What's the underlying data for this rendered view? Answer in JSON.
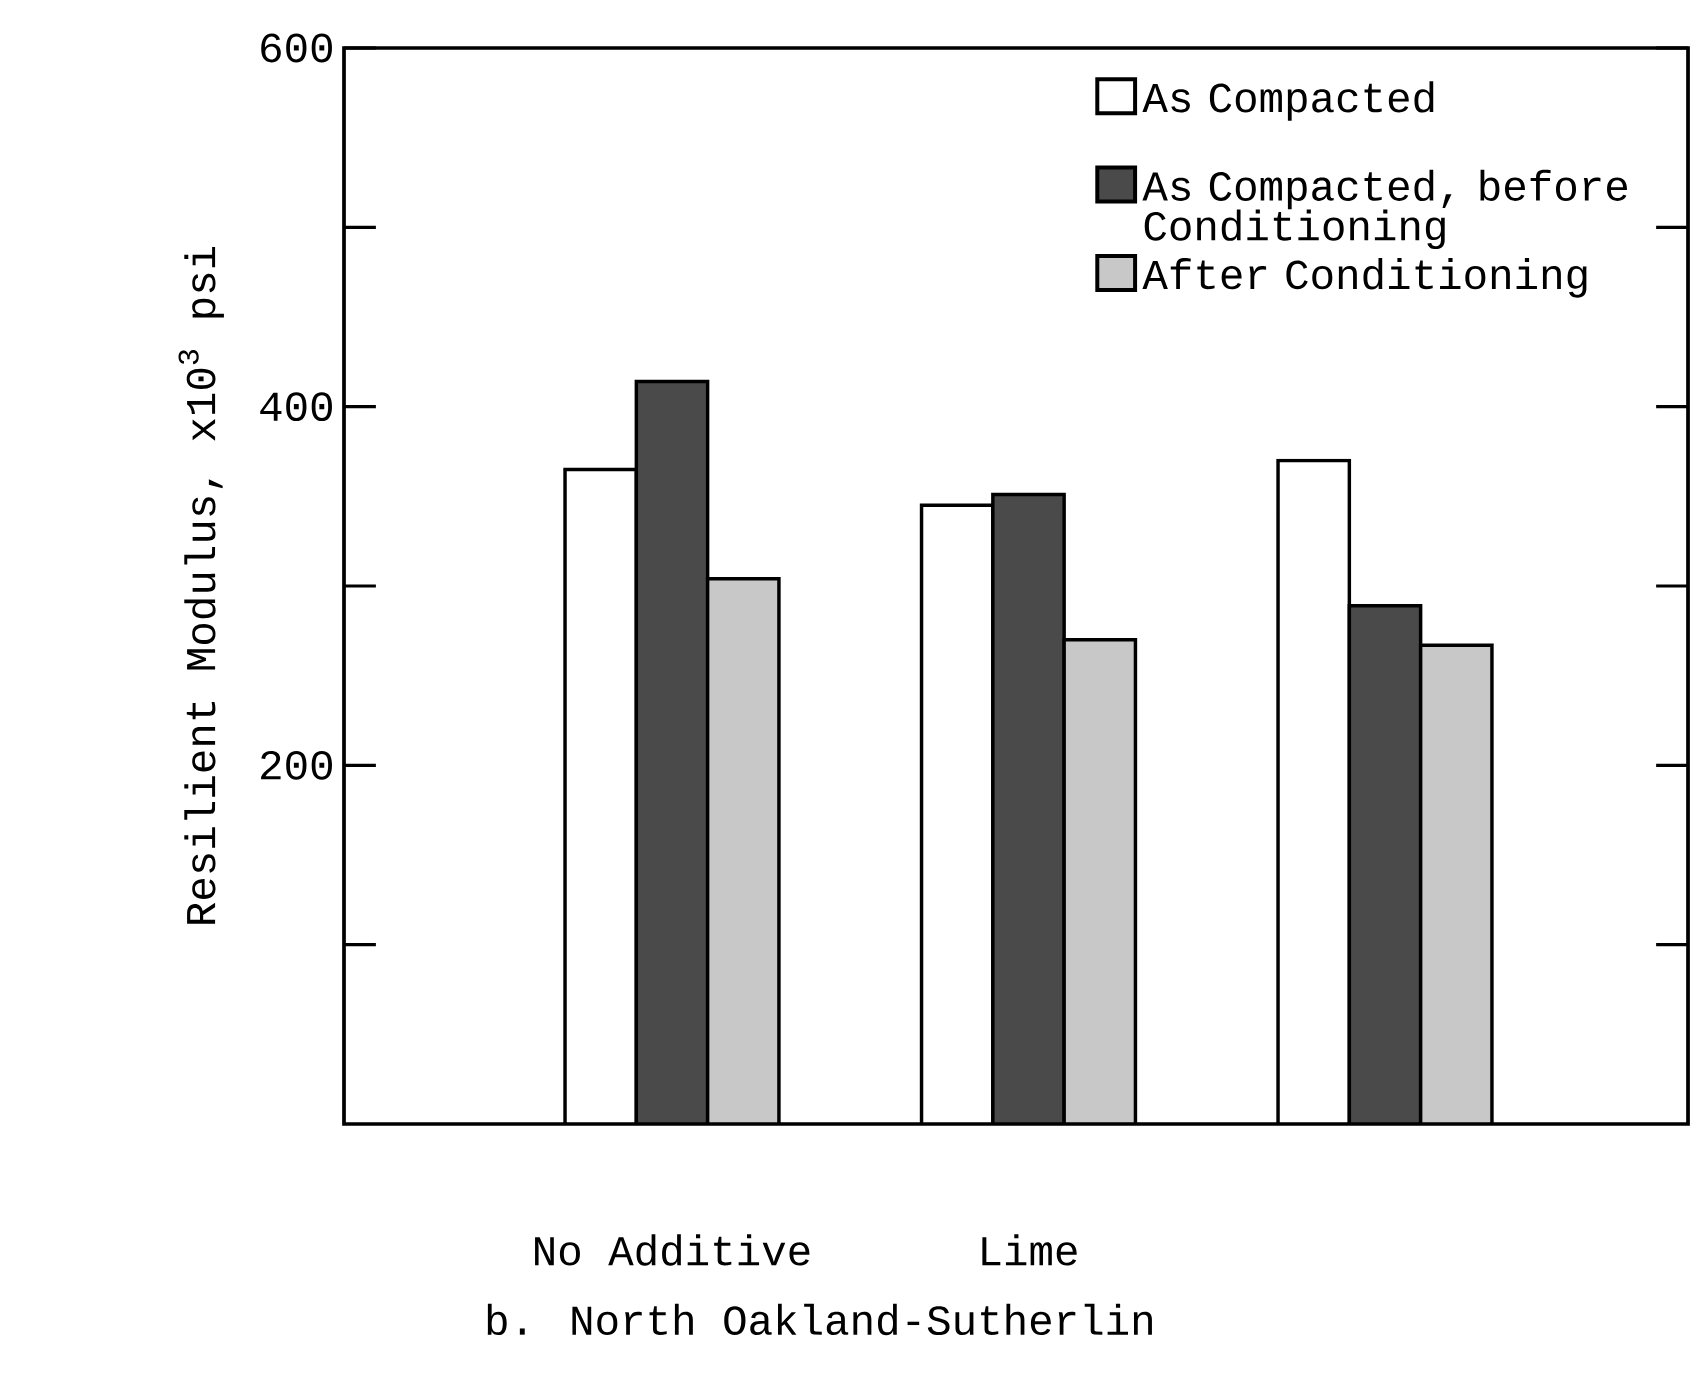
{
  "chart_data": {
    "type": "bar",
    "title": "b. North Oakland-Sutherlin",
    "ylabel": "Resilient Modulus, x10$^{3}$ psi",
    "categories": [
      "No Additive",
      "Lime",
      null
    ],
    "series": [
      {
        "name": "As Compacted",
        "color": "#ffffff",
        "values": [
          365,
          345,
          370
        ]
      },
      {
        "name": "As Compacted, before Conditioning",
        "color": "#4a4a4a",
        "values": [
          414,
          351,
          289
        ]
      },
      {
        "name": "After Conditioning",
        "color": "#c8c8c8",
        "values": [
          304,
          270,
          267
        ]
      }
    ],
    "ylim": [
      0,
      600
    ],
    "yticks": [
      {
        "value": 100,
        "label": null
      },
      200,
      {
        "value": 300,
        "label": null
      },
      400,
      {
        "value": 500,
        "label": null
      },
      600
    ],
    "legend": "top right",
    "grid": false
  }
}
